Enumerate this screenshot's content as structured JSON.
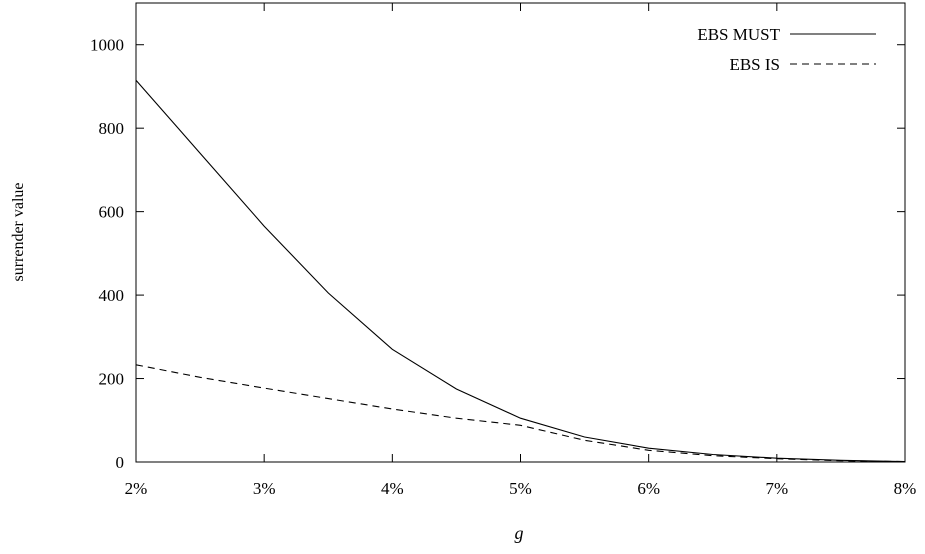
{
  "chart_data": {
    "type": "line",
    "xlabel": "g",
    "ylabel": "surrender value",
    "xlim": [
      2,
      8
    ],
    "ylim": [
      0,
      1100
    ],
    "x_ticks": [
      2,
      3,
      4,
      5,
      6,
      7,
      8
    ],
    "x_tick_labels": [
      "2%",
      "3%",
      "4%",
      "5%",
      "6%",
      "7%",
      "8%"
    ],
    "y_ticks": [
      0,
      200,
      400,
      600,
      800,
      1000
    ],
    "y_tick_labels": [
      "0",
      "200",
      "400",
      "600",
      "800",
      "1000"
    ],
    "grid": false,
    "legend_position": "top-right",
    "x": [
      2,
      2.5,
      3,
      3.5,
      4,
      4.5,
      5,
      5.5,
      6,
      6.5,
      7,
      7.5,
      8
    ],
    "series": [
      {
        "name": "EBS MUST",
        "style": "solid",
        "values": [
          915,
          740,
          565,
          405,
          270,
          175,
          105,
          60,
          33,
          18,
          9,
          4,
          1
        ]
      },
      {
        "name": "EBS IS",
        "style": "dashed",
        "values": [
          233,
          203,
          177,
          152,
          127,
          105,
          88,
          52,
          28,
          15,
          8,
          3,
          1
        ]
      }
    ]
  }
}
